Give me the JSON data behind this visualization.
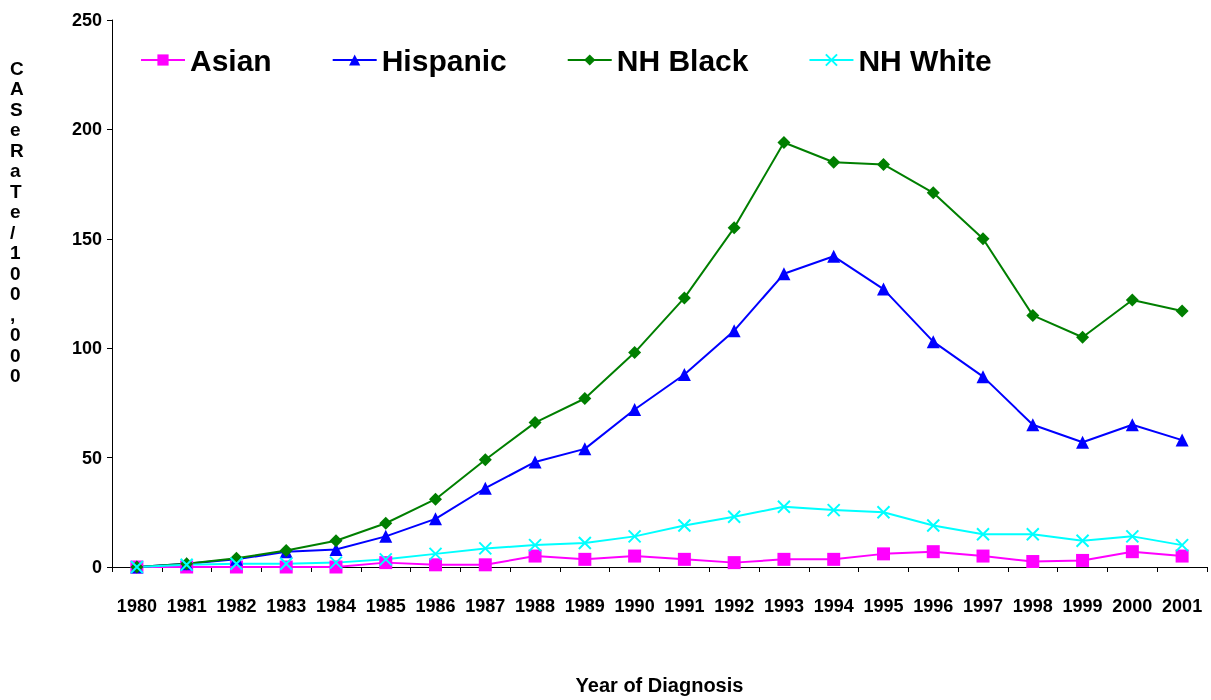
{
  "chart_data": {
    "type": "line",
    "xlabel": "Year of Diagnosis",
    "ylabel": "CASeRaTe/100,000",
    "categories": [
      "1980",
      "1981",
      "1982",
      "1983",
      "1984",
      "1985",
      "1986",
      "1987",
      "1988",
      "1989",
      "1990",
      "1991",
      "1992",
      "1993",
      "1994",
      "1995",
      "1996",
      "1997",
      "1998",
      "1999",
      "2000",
      "2001"
    ],
    "series": [
      {
        "name": "Asian",
        "color": "#ff00ff",
        "marker": "square",
        "values": [
          0,
          0,
          0,
          0,
          0,
          2,
          1,
          1,
          5,
          3.5,
          5,
          3.5,
          2,
          3.5,
          3.5,
          6,
          7,
          5,
          2.5,
          3,
          7,
          5
        ]
      },
      {
        "name": "Hispanic",
        "color": "#0000ff",
        "marker": "triangle",
        "values": [
          0,
          1.5,
          3.5,
          7,
          8,
          14,
          22,
          36,
          48,
          54,
          72,
          88,
          108,
          134,
          142,
          127,
          103,
          87,
          65,
          57,
          65,
          58
        ]
      },
      {
        "name": "NH Black",
        "color": "#007f00",
        "marker": "diamond",
        "values": [
          0,
          1.5,
          4,
          7.5,
          12,
          20,
          31,
          49,
          66,
          77,
          98,
          123,
          155,
          194,
          185,
          184,
          171,
          150,
          115,
          105,
          122,
          117
        ]
      },
      {
        "name": "NH White",
        "color": "#00ffff",
        "marker": "cross",
        "values": [
          0,
          1,
          1.5,
          1.5,
          2,
          3.5,
          6,
          8.5,
          10,
          11,
          14,
          19,
          23,
          27.5,
          26,
          25,
          19,
          15,
          15,
          12,
          14,
          10
        ]
      }
    ],
    "ylim": [
      0,
      250
    ],
    "yticks": [
      0,
      50,
      100,
      150,
      200,
      250
    ],
    "grid": false,
    "legend": "top left",
    "line_style": "solid"
  }
}
